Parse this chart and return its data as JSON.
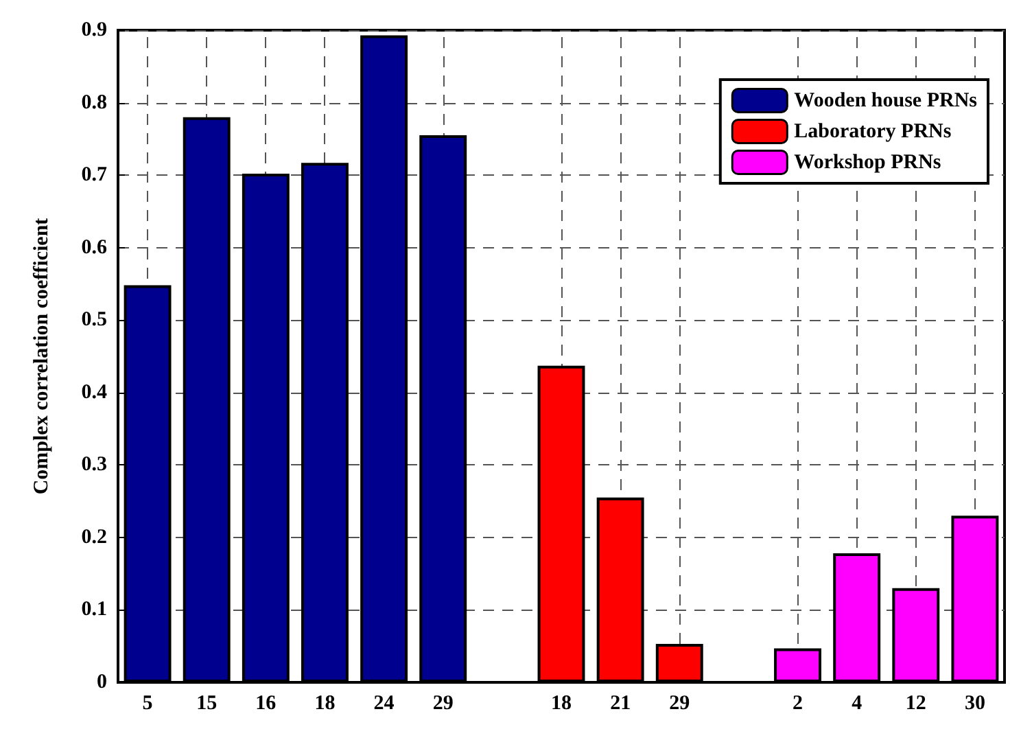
{
  "chart_data": {
    "type": "bar",
    "ylabel": "Complex correlation coefficient",
    "categories": [
      "5",
      "15",
      "16",
      "18",
      "24",
      "29",
      null,
      "18",
      "21",
      "29",
      null,
      "2",
      "4",
      "12",
      "30"
    ],
    "series": [
      {
        "name": "Wooden house PRNs",
        "color": "#00008f",
        "values": [
          0.548,
          0.78,
          0.702,
          0.717,
          0.893,
          0.755,
          null,
          null,
          null,
          null,
          null,
          null,
          null,
          null,
          null
        ]
      },
      {
        "name": "Laboratory PRNs",
        "color": "#ff0000",
        "values": [
          null,
          null,
          null,
          null,
          null,
          null,
          null,
          0.437,
          0.255,
          0.053,
          null,
          null,
          null,
          null,
          null
        ]
      },
      {
        "name": "Workshop PRNs",
        "color": "#ff00ff",
        "values": [
          null,
          null,
          null,
          null,
          null,
          null,
          null,
          null,
          null,
          null,
          null,
          0.047,
          0.178,
          0.13,
          0.23
        ]
      }
    ],
    "ylim": [
      0,
      0.9
    ],
    "yticks": [
      0,
      0.1,
      0.2,
      0.3,
      0.4,
      0.5,
      0.6,
      0.7,
      0.8,
      0.9
    ],
    "grid": true,
    "legend": "top right"
  }
}
